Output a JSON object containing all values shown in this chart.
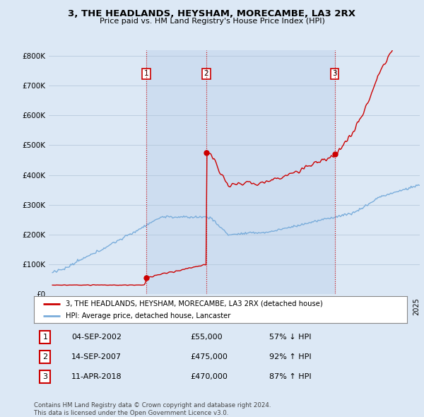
{
  "title": "3, THE HEADLANDS, HEYSHAM, MORECAMBE, LA3 2RX",
  "subtitle": "Price paid vs. HM Land Registry's House Price Index (HPI)",
  "property_label": "3, THE HEADLANDS, HEYSHAM, MORECAMBE, LA3 2RX (detached house)",
  "hpi_label": "HPI: Average price, detached house, Lancaster",
  "transactions": [
    {
      "num": 1,
      "date": "04-SEP-2002",
      "price": 55000,
      "hpi_pct": "57% ↓ HPI",
      "x": 2002.75
    },
    {
      "num": 2,
      "date": "14-SEP-2007",
      "price": 475000,
      "hpi_pct": "92% ↑ HPI",
      "x": 2007.7
    },
    {
      "num": 3,
      "date": "11-APR-2018",
      "price": 470000,
      "hpi_pct": "87% ↑ HPI",
      "x": 2018.28
    }
  ],
  "vline_color": "#cc0000",
  "property_line_color": "#cc0000",
  "hpi_line_color": "#7aaddb",
  "shade_color": "#dce8f5",
  "background_color": "#dce8f5",
  "plot_bg_color": "#dce8f5",
  "footer": "Contains HM Land Registry data © Crown copyright and database right 2024.\nThis data is licensed under the Open Government Licence v3.0.",
  "ylim": [
    0,
    800000
  ],
  "xlim_start": 1994.7,
  "xlim_end": 2025.3
}
